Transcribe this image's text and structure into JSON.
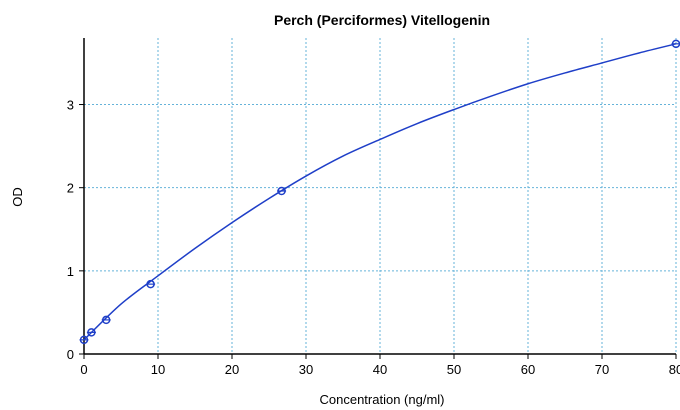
{
  "chart_data": {
    "type": "scatter",
    "title": "Perch (Perciformes) Vitellogenin",
    "xlabel": "Concentration (ng/ml)",
    "ylabel": "OD",
    "xlim": [
      0,
      80
    ],
    "ylim": [
      0,
      3.8
    ],
    "xticks": [
      0,
      10,
      20,
      30,
      40,
      50,
      60,
      70,
      80
    ],
    "yticks": [
      0,
      1,
      2,
      3
    ],
    "xtick_labels": [
      "0",
      "10",
      "20",
      "30",
      "40",
      "50",
      "60",
      "70",
      "80"
    ],
    "ytick_labels": [
      "0",
      "1",
      "2",
      "3"
    ],
    "grid": true,
    "legend": "none",
    "series": [
      {
        "kind": "points",
        "x": [
          0,
          1,
          3,
          9,
          26.7,
          80
        ],
        "y": [
          0.17,
          0.26,
          0.41,
          0.84,
          1.96,
          3.73
        ]
      },
      {
        "kind": "fit-curve",
        "x": [
          0,
          5,
          10,
          15,
          20,
          25,
          30,
          35,
          40,
          45,
          50,
          55,
          60,
          65,
          70,
          75,
          80
        ],
        "y": [
          0.17,
          0.6,
          0.94,
          1.27,
          1.58,
          1.87,
          2.14,
          2.38,
          2.58,
          2.77,
          2.94,
          3.1,
          3.25,
          3.38,
          3.5,
          3.62,
          3.73
        ]
      }
    ]
  },
  "style": {
    "series_color": "#1f3fc8",
    "grid_color": "#66b3d9",
    "axis_color": "#000000"
  }
}
